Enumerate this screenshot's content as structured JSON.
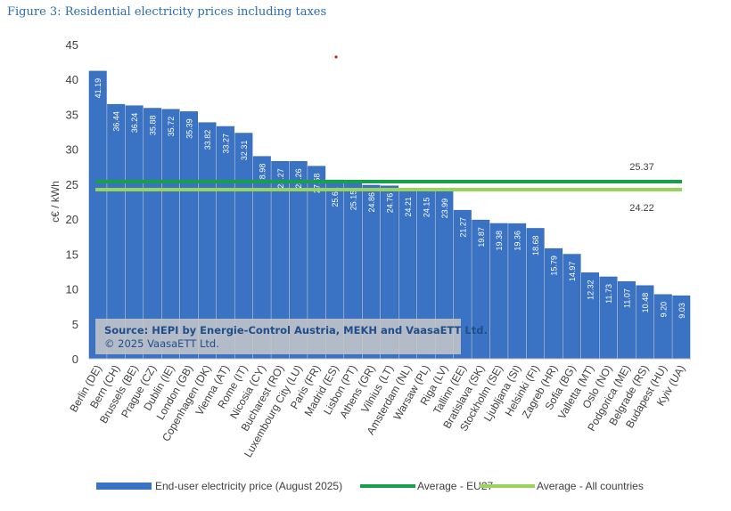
{
  "chart_data": {
    "type": "bar",
    "title": "Figure 3: Residential electricity prices including taxes",
    "ylabel": "c€ / kWh",
    "ylim": [
      0,
      45
    ],
    "yticks": [
      0,
      5,
      10,
      15,
      20,
      25,
      30,
      35,
      40,
      45
    ],
    "grid": false,
    "legend_placement": "bottom",
    "categories": [
      "Berlin (DE)",
      "Bern (CH)",
      "Brussels (BE)",
      "Prague (CZ)",
      "Dublin (IE)",
      "London (GB)",
      "Copenhagen (DK)",
      "Vienna (AT)",
      "Rome (IT)",
      "Nicosia (CY)",
      "Bucharest (RO)",
      "Luxembourg City (LU)",
      "Paris (FR)",
      "Madrid (ES)",
      "Lisbon (PT)",
      "Athens (GR)",
      "Vilnius (LT)",
      "Amsterdam (NL)",
      "Warsaw (PL)",
      "Riga (LV)",
      "Tallinn (EE)",
      "Bratislava (SK)",
      "Stockholm (SE)",
      "Ljubljana (SI)",
      "Helsinki (FI)",
      "Zagreb (HR)",
      "Sofia (BG)",
      "Valletta (MT)",
      "Oslo (NO)",
      "Podgorica (ME)",
      "Belgrade (RS)",
      "Budapest (HU)",
      "Kyiv (UA)"
    ],
    "series": [
      {
        "name": "End-user electricity price (August 2025)",
        "color": "#3a72c4",
        "values": [
          41.19,
          36.44,
          36.24,
          35.88,
          35.72,
          35.39,
          33.82,
          33.27,
          32.31,
          28.98,
          28.27,
          28.26,
          27.58,
          25.61,
          25.15,
          24.86,
          24.76,
          24.21,
          24.15,
          23.99,
          21.27,
          19.87,
          19.38,
          19.36,
          18.68,
          15.79,
          14.97,
          12.32,
          11.73,
          11.07,
          10.48,
          9.2,
          9.03
        ]
      }
    ],
    "reference_lines": [
      {
        "name": "Average - EU27",
        "value": 25.37,
        "label": "25.37",
        "color": "#17a04a"
      },
      {
        "name": "Average - All countries",
        "value": 24.22,
        "label": "24.22",
        "color": "#98d35a"
      }
    ],
    "annotation": {
      "line1": "Source: HEPI by Energie-Control Austria, MEKH and VaasaETT Ltd.",
      "line2": "© 2025 VaasaETT Ltd."
    }
  }
}
